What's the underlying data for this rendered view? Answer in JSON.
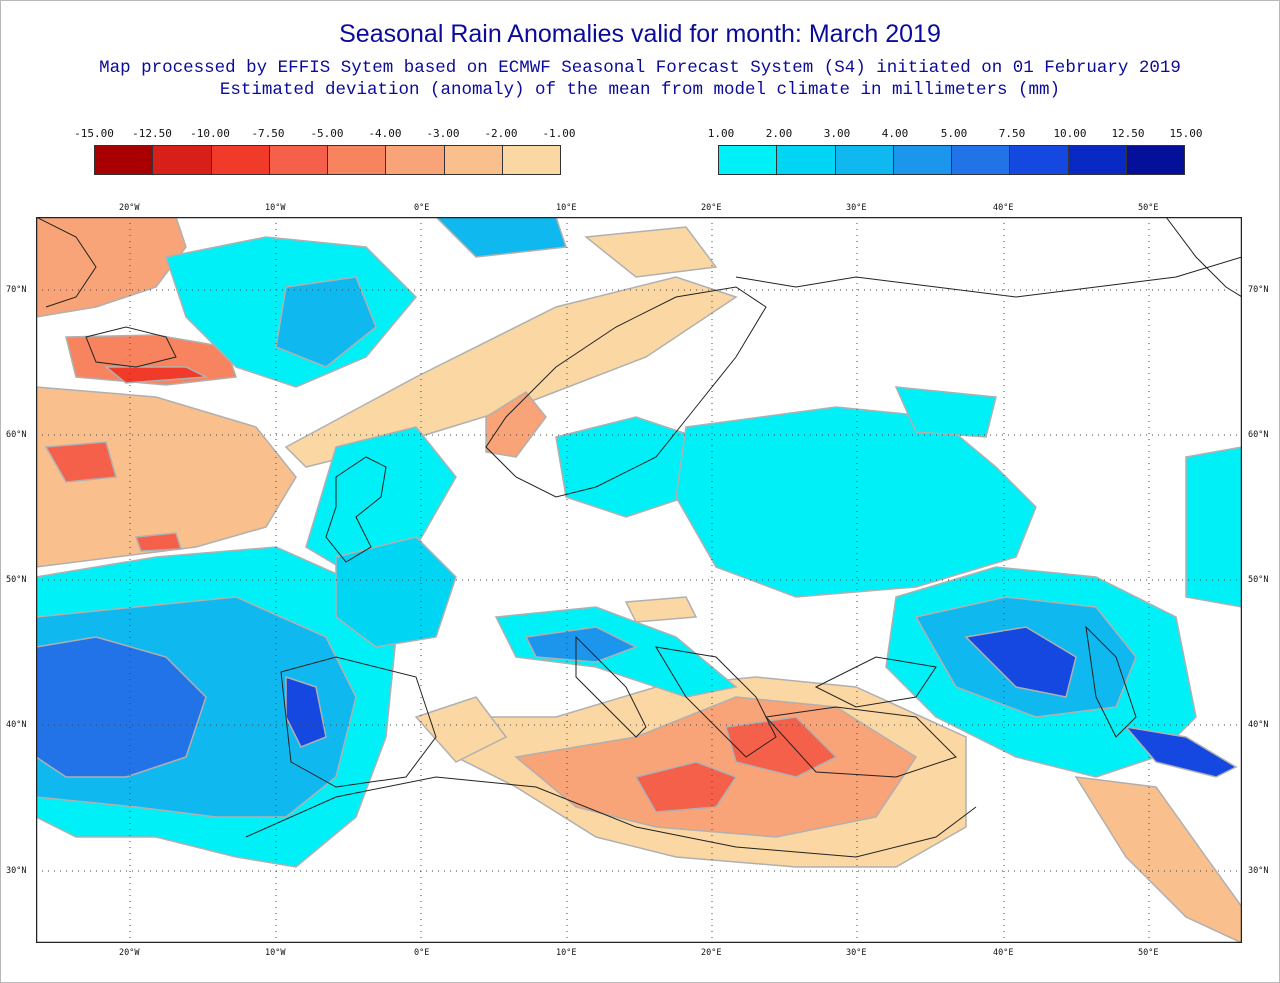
{
  "title": "Seasonal Rain Anomalies valid for month: March 2019",
  "subtitle_line1": "Map processed by EFFIS Sytem based on ECMWF Seasonal Forecast System (S4) initiated on 01 February 2019",
  "subtitle_line2": "Estimated deviation (anomaly) of the mean from model climate in millimeters (mm)",
  "legend_negative": {
    "ticks": [
      "-15.00",
      "-12.50",
      "-10.00",
      "-7.50",
      "-5.00",
      "-4.00",
      "-3.00",
      "-2.00",
      "-1.00"
    ],
    "colors": [
      "#a80000",
      "#d8201a",
      "#f03a2a",
      "#f5604a",
      "#f7845f",
      "#f8a478",
      "#f9bf8c",
      "#fbd7a4"
    ]
  },
  "legend_positive": {
    "ticks": [
      "1.00",
      "2.00",
      "3.00",
      "4.00",
      "5.00",
      "7.50",
      "10.00",
      "12.50",
      "15.00"
    ],
    "colors": [
      "#00f0f8",
      "#00d6f4",
      "#10b8f0",
      "#1c96ec",
      "#2272e8",
      "#1448e0",
      "#0a28c4",
      "#04109a"
    ]
  },
  "axes": {
    "lon_labels": [
      "20°W",
      "10°W",
      "0°E",
      "10°E",
      "20°E",
      "30°E",
      "40°E",
      "50°E"
    ],
    "lat_labels": [
      "70°N",
      "60°N",
      "50°N",
      "40°N",
      "30°N"
    ]
  }
}
